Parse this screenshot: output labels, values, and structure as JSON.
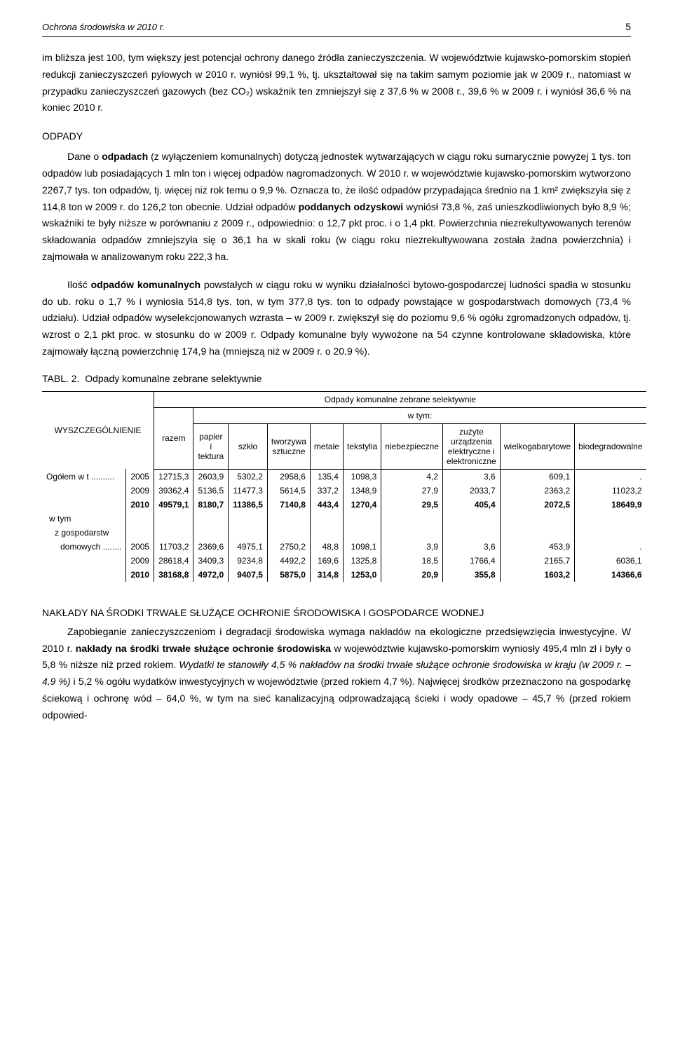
{
  "header": {
    "title": "Ochrona środowiska w 2010 r.",
    "page_number": "5"
  },
  "para_intro": "im bliższa jest 100, tym większy jest potencjał ochrony danego źródła zanieczyszczenia. W województwie kujawsko-pomorskim stopień redukcji zanieczyszczeń pyłowych w 2010 r. wyniósł 99,1 %, tj. ukształtował się na takim samym poziomie jak w 2009 r., natomiast w przypadku zanieczyszczeń gazowych (bez CO₂) wskaźnik ten zmniejszył się z 37,6 % w 2008 r., 39,6 % w 2009 r. i wyniósł 36,6 % na koniec 2010 r.",
  "odpady": {
    "title": "ODPADY",
    "p1a": "Dane o ",
    "p1b": "odpadach",
    "p1c": " (z wyłączeniem komunalnych) dotyczą jednostek wytwarzających w ciągu roku sumarycznie powyżej 1 tys. ton odpadów lub posiadających 1 mln ton i więcej odpadów nagromadzonych. W 2010 r. w województwie kujawsko-pomorskim wytworzono 2267,7 tys. ton odpadów, tj. więcej niż rok temu o 9,9 %. Oznacza to, że ilość odpadów przypadająca średnio na 1 km² zwiększyła się z 114,8 ton w 2009 r. do 126,2 ton obecnie. Udział odpadów ",
    "p1d": "poddanych odzyskowi",
    "p1e": " wyniósł 73,8 %, zaś unieszkodliwionych było 8,9 %; wskaźniki te były niższe w porównaniu z 2009 r., odpowiednio: o 12,7 pkt proc. i o 1,4 pkt. Powierzchnia niezrekultywowanych terenów składowania odpadów zmniejszyła się o 36,1 ha w skali roku (w ciągu roku niezrekultywowana została żadna powierzchnia) i zajmowała w analizowanym roku 222,3 ha.",
    "p2a": "Ilość ",
    "p2b": "odpadów komunalnych",
    "p2c": " powstałych w ciągu roku w wyniku działalności bytowo-gospodarczej ludności spadła w stosunku do ub. roku o 1,7 % i wyniosła 514,8 tys. ton, w tym 377,8 tys. ton to odpady powstające w gospodarstwach domowych (73,4 % udziału). Udział odpadów wyselekcjonowanych wzrasta – w 2009 r. zwiększył się do poziomu 9,6 % ogółu zgromadzonych odpadów, tj. wzrost o 2,1 pkt proc. w stosunku do w 2009 r. Odpady komunalne były wywożone na 54 czynne kontrolowane składowiska, które zajmowały łączną powierzchnię 174,9 ha (mniejszą niż w 2009 r. o 20,9 %)."
  },
  "table": {
    "caption_prefix": "TABL. 2.",
    "caption_title": "Odpady komunalne zebrane selektywnie",
    "header_span": "Odpady komunalne zebrane selektywnie",
    "header_wtym": "w tym:",
    "col_spec": "WYSZCZEGÓLNIENIE",
    "cols": [
      "razem",
      "papier i tektura",
      "szkło",
      "tworzywa sztuczne",
      "metale",
      "tekstylia",
      "niebezpieczne",
      "zużyte urządzenia elektryczne i elektroniczne",
      "wielkogabarytowe",
      "biodegradowalne"
    ],
    "rows": [
      {
        "label": "Ogółem w t ..........",
        "year": "2005",
        "vals": [
          "12715,3",
          "2603,9",
          "5302,2",
          "2958,6",
          "135,4",
          "1098,3",
          "4,2",
          "3,6",
          "609,1",
          "."
        ]
      },
      {
        "label": "",
        "year": "2009",
        "vals": [
          "39362,4",
          "5136,5",
          "11477,3",
          "5614,5",
          "337,2",
          "1348,9",
          "27,9",
          "2033,7",
          "2363,2",
          "11023,2"
        ]
      },
      {
        "label": "",
        "year": "2010",
        "bold": true,
        "vals": [
          "49579,1",
          "8180,7",
          "11386,5",
          "7140,8",
          "443,4",
          "1270,4",
          "29,5",
          "405,4",
          "2072,5",
          "18649,9"
        ]
      }
    ],
    "sublabel1": "w tym",
    "sublabel2": "z gospodarstw",
    "rows2": [
      {
        "label": "domowych ........",
        "year": "2005",
        "vals": [
          "11703,2",
          "2369,6",
          "4975,1",
          "2750,2",
          "48,8",
          "1098,1",
          "3,9",
          "3,6",
          "453,9",
          "."
        ]
      },
      {
        "label": "",
        "year": "2009",
        "vals": [
          "28618,4",
          "3409,3",
          "9234,8",
          "4492,2",
          "169,6",
          "1325,8",
          "18,5",
          "1766,4",
          "2165,7",
          "6036,1"
        ]
      },
      {
        "label": "",
        "year": "2010",
        "bold": true,
        "vals": [
          "38168,8",
          "4972,0",
          "9407,5",
          "5875,0",
          "314,8",
          "1253,0",
          "20,9",
          "355,8",
          "1603,2",
          "14366,6"
        ]
      }
    ]
  },
  "naklady": {
    "title": "NAKŁADY NA ŚRODKI TRWAŁE SŁUŻĄCE OCHRONIE ŚRODOWISKA I GOSPODARCE WODNEJ",
    "p_a": "Zapobieganie zanieczyszczeniom i degradacji środowiska wymaga nakładów na ekologiczne przedsięwzięcia inwestycyjne. W 2010 r. ",
    "p_b": "nakłady na środki trwałe służące ochronie środowiska",
    "p_c": " w województwie kujawsko-​pomorskim wyniosły 495,4 mln zł i były o 5,8 % niższe niż przed rokiem. ",
    "p_d": "Wydatki te stanowiły 4,5 % nakładów na środki trwałe służące ochronie środowiska w kraju (w 2009 r. – 4,9 %)",
    "p_e": " i 5,2 % ogółu wydatków inwestycyjnych w województwie (przed rokiem 4,7 %). Najwięcej środków przeznaczono na gospodarkę ściekową i ochronę wód – 64,0 %, w tym na sieć kanalizacyjną odprowadzającą ścieki i wody opadowe – 45,7 % (przed rokiem odpowied-"
  }
}
